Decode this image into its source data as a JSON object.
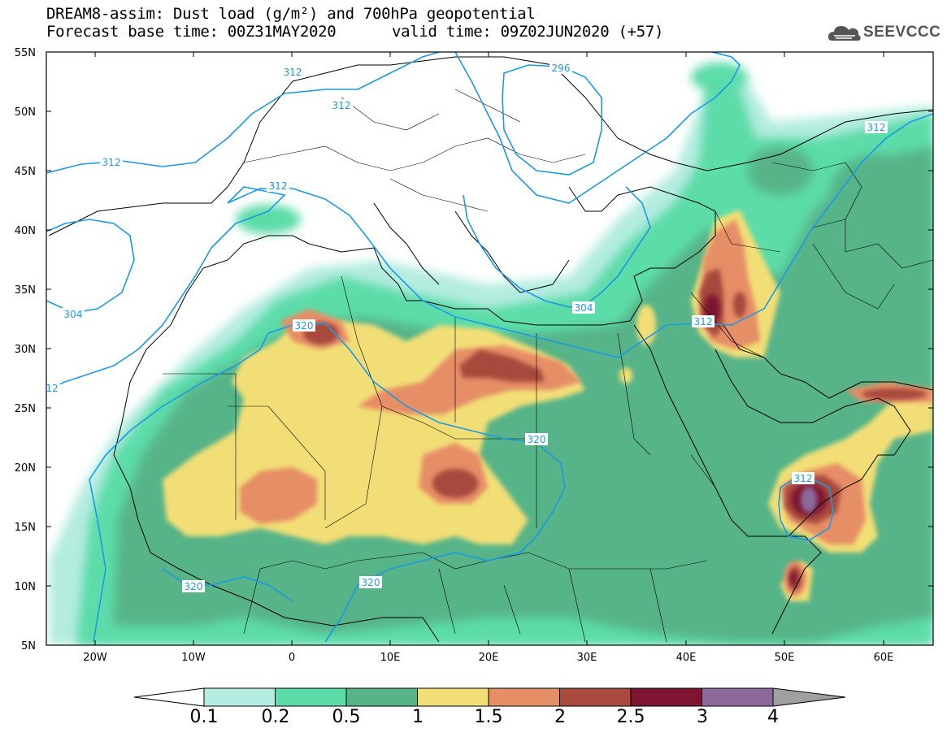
{
  "header": {
    "title_line1": "DREAM8-assim: Dust load (g/m²) and 700hPa geopotential",
    "title_line2": "Forecast base time: 00Z31MAY2020",
    "valid_time": "valid time: 09Z02JUN2020 (+57)"
  },
  "logo": {
    "text": "SEEVCCC",
    "icon": "cloud-icon"
  },
  "map": {
    "lat_labels": [
      "55N",
      "50N",
      "45N",
      "40N",
      "35N",
      "30N",
      "25N",
      "20N",
      "15N",
      "10N",
      "5N"
    ],
    "lon_labels": [
      "20W",
      "10W",
      "0",
      "10E",
      "20E",
      "30E",
      "40E",
      "50E",
      "60E"
    ],
    "contour_labels": [
      "312",
      "312",
      "312",
      "312",
      "296",
      "312",
      "304",
      "304",
      "320",
      "312",
      "312",
      "320",
      "12",
      "320",
      "320"
    ]
  },
  "colorbar": {
    "ticks": [
      "0.1",
      "0.2",
      "0.5",
      "1",
      "1.5",
      "2",
      "2.5",
      "3",
      "4"
    ],
    "colors": [
      "#ffffff",
      "#b4ece0",
      "#5cdca8",
      "#56b488",
      "#f2de76",
      "#e68e66",
      "#a84a3e",
      "#7e1432",
      "#8c6a9c",
      "#a0a0a0"
    ]
  }
}
